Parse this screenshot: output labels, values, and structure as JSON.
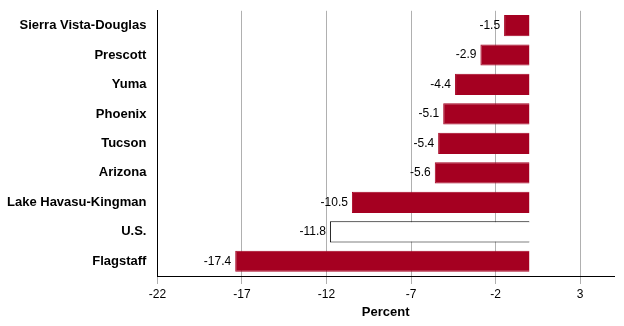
{
  "chart_data": {
    "type": "bar",
    "orientation": "horizontal",
    "xlabel": "Percent",
    "categories": [
      "Sierra Vista-Douglas",
      "Prescott",
      "Yuma",
      "Phoenix",
      "Tucson",
      "Arizona",
      "Lake Havasu-Kingman",
      "U.S.",
      "Flagstaff"
    ],
    "values": [
      -1.5,
      -2.9,
      -4.4,
      -5.1,
      -5.4,
      -5.6,
      -10.5,
      -11.8,
      -17.4
    ],
    "colors": [
      "#a50021",
      "#a50021",
      "#a50021",
      "#a50021",
      "#a50021",
      "#a50021",
      "#a50021",
      "#ffffff",
      "#a50021"
    ],
    "xlim": [
      -22,
      5
    ],
    "xticks": [
      -22,
      -17,
      -12,
      -7,
      -2,
      3
    ],
    "grid": true,
    "data_labels": true
  }
}
